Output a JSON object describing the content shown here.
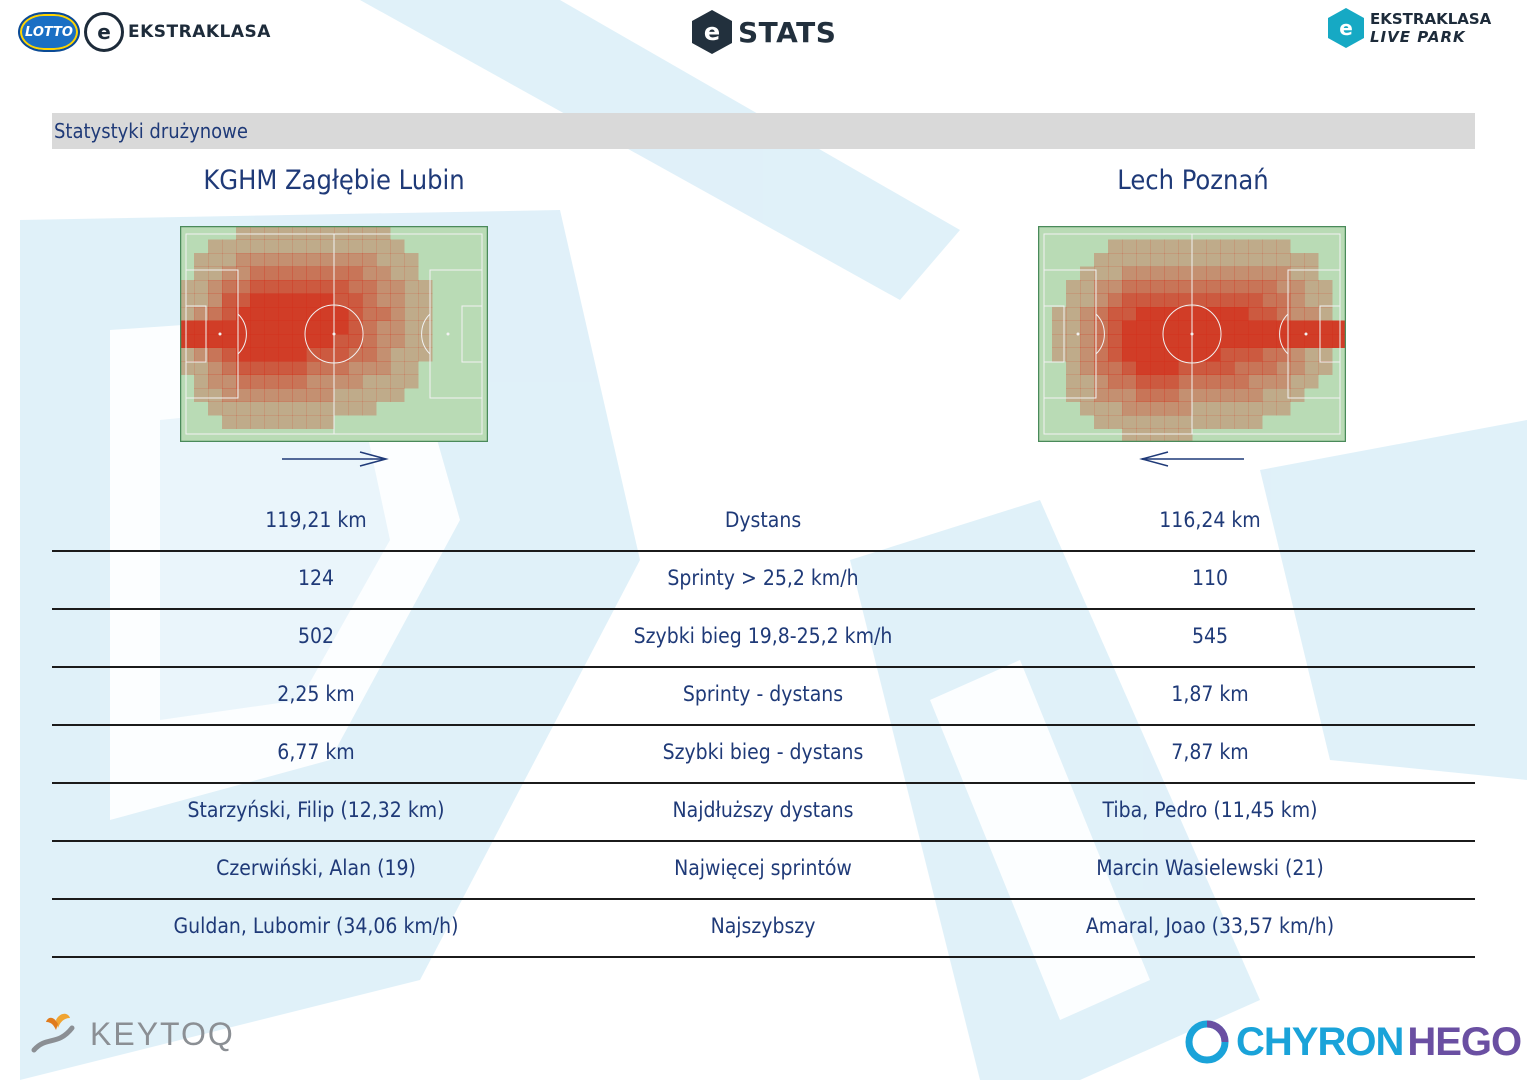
{
  "header": {
    "lotto_badge": "LOTTO",
    "left_logo_mark": "e",
    "left_logo_text": "EKSTRAKLASA",
    "center_logo_mark": "e",
    "center_logo_text": "STATS",
    "right_logo_mark": "e",
    "right_logo_line1": "EKSTRAKLASA",
    "right_logo_line2": "LIVE PARK"
  },
  "section": {
    "title": "Statystyki drużynowe"
  },
  "teams": {
    "home": {
      "name": "KGHM Zagłębie Lubin",
      "attack_direction": "right"
    },
    "away": {
      "name": "Lech Poznań",
      "attack_direction": "left"
    }
  },
  "colors": {
    "text": "#1f3a78",
    "pitch_green": "#b9dbb5",
    "heat_high": "#d2301b",
    "bar_gray": "#d9d9d9"
  },
  "stats": [
    {
      "home": "119,21 km",
      "label": "Dystans",
      "away": "116,24 km"
    },
    {
      "home": "124",
      "label": "Sprinty > 25,2 km/h",
      "away": "110"
    },
    {
      "home": "502",
      "label": "Szybki bieg 19,8-25,2 km/h",
      "away": "545"
    },
    {
      "home": "2,25 km",
      "label": "Sprinty - dystans",
      "away": "1,87 km"
    },
    {
      "home": "6,77 km",
      "label": "Szybki bieg - dystans",
      "away": "7,87 km"
    },
    {
      "home": "Starzyński, Filip (12,32 km)",
      "label": "Najdłuższy dystans",
      "away": "Tiba, Pedro (11,45 km)"
    },
    {
      "home": "Czerwiński, Alan (19)",
      "label": "Najwięcej sprintów",
      "away": "Marcin Wasielewski (21)"
    },
    {
      "home": "Guldan, Lubomir (34,06 km/h)",
      "label": "Najszybszy",
      "away": "Amaral, Joao (33,57 km/h)"
    }
  ],
  "footer": {
    "left_logo_text": "KEYTOQ",
    "right_logo_text_a": "CHYRON",
    "right_logo_text_b": "HEGO"
  }
}
